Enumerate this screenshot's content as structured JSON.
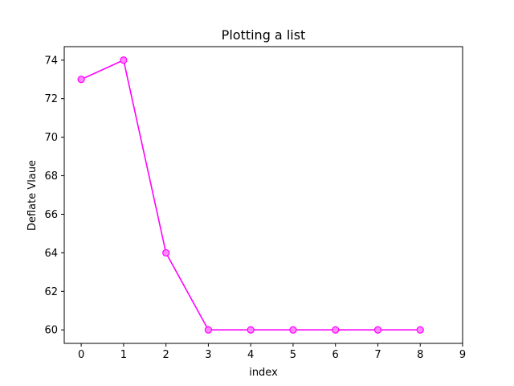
{
  "chart_data": {
    "type": "line",
    "title": "Plotting a list",
    "xlabel": "index",
    "ylabel": "Deflate Vlaue",
    "x": [
      0,
      1,
      2,
      3,
      4,
      5,
      6,
      7,
      8
    ],
    "series": [
      {
        "values": [
          73,
          74,
          64,
          60,
          60,
          60,
          60,
          60,
          60
        ],
        "color": "#ff00ff",
        "marker": "circle",
        "marker_face_color": "#ff88ff"
      }
    ],
    "xlim": [
      -0.4,
      9
    ],
    "ylim": [
      59.3,
      74.7
    ],
    "xticks": [
      0,
      1,
      2,
      3,
      4,
      5,
      6,
      7,
      8,
      9
    ],
    "xtick_labels": [
      "0",
      "1",
      "2",
      "3",
      "4",
      "5",
      "6",
      "7",
      "8",
      "9"
    ],
    "yticks": [
      60,
      62,
      64,
      66,
      68,
      70,
      72,
      74
    ],
    "ytick_labels": [
      "60",
      "62",
      "64",
      "66",
      "68",
      "70",
      "72",
      "74"
    ],
    "grid": false,
    "legend": "none"
  }
}
